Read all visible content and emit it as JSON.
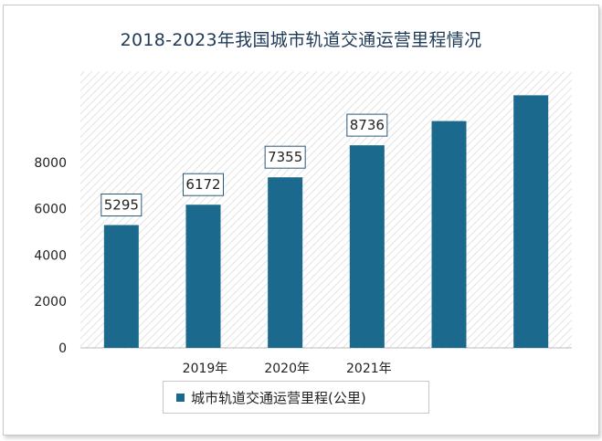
{
  "title": "2018-2023年我国城市轨道交通运营里程情况",
  "colors": {
    "bar": "#1b6a8e",
    "title": "#1f3b57",
    "hatch": "#e6e6e6"
  },
  "chart_data": {
    "type": "bar",
    "title": "2018-2023年我国城市轨道交通运营里程情况",
    "categories": [
      "",
      "2019年",
      "2020年",
      "2021年",
      "",
      ""
    ],
    "series": [
      {
        "name": "城市轨道交通运营里程(公里)",
        "values": [
          5295,
          6172,
          7355,
          8736,
          9780,
          10890
        ]
      }
    ],
    "data_labels": [
      "5295",
      "6172",
      "7355",
      "8736",
      "",
      ""
    ],
    "yticks": [
      0,
      2000,
      4000,
      6000,
      8000
    ],
    "ylim": [
      0,
      12000
    ],
    "grid": false,
    "legend": "bottom"
  },
  "legend": {
    "label": "城市轨道交通运营里程(公里)"
  }
}
